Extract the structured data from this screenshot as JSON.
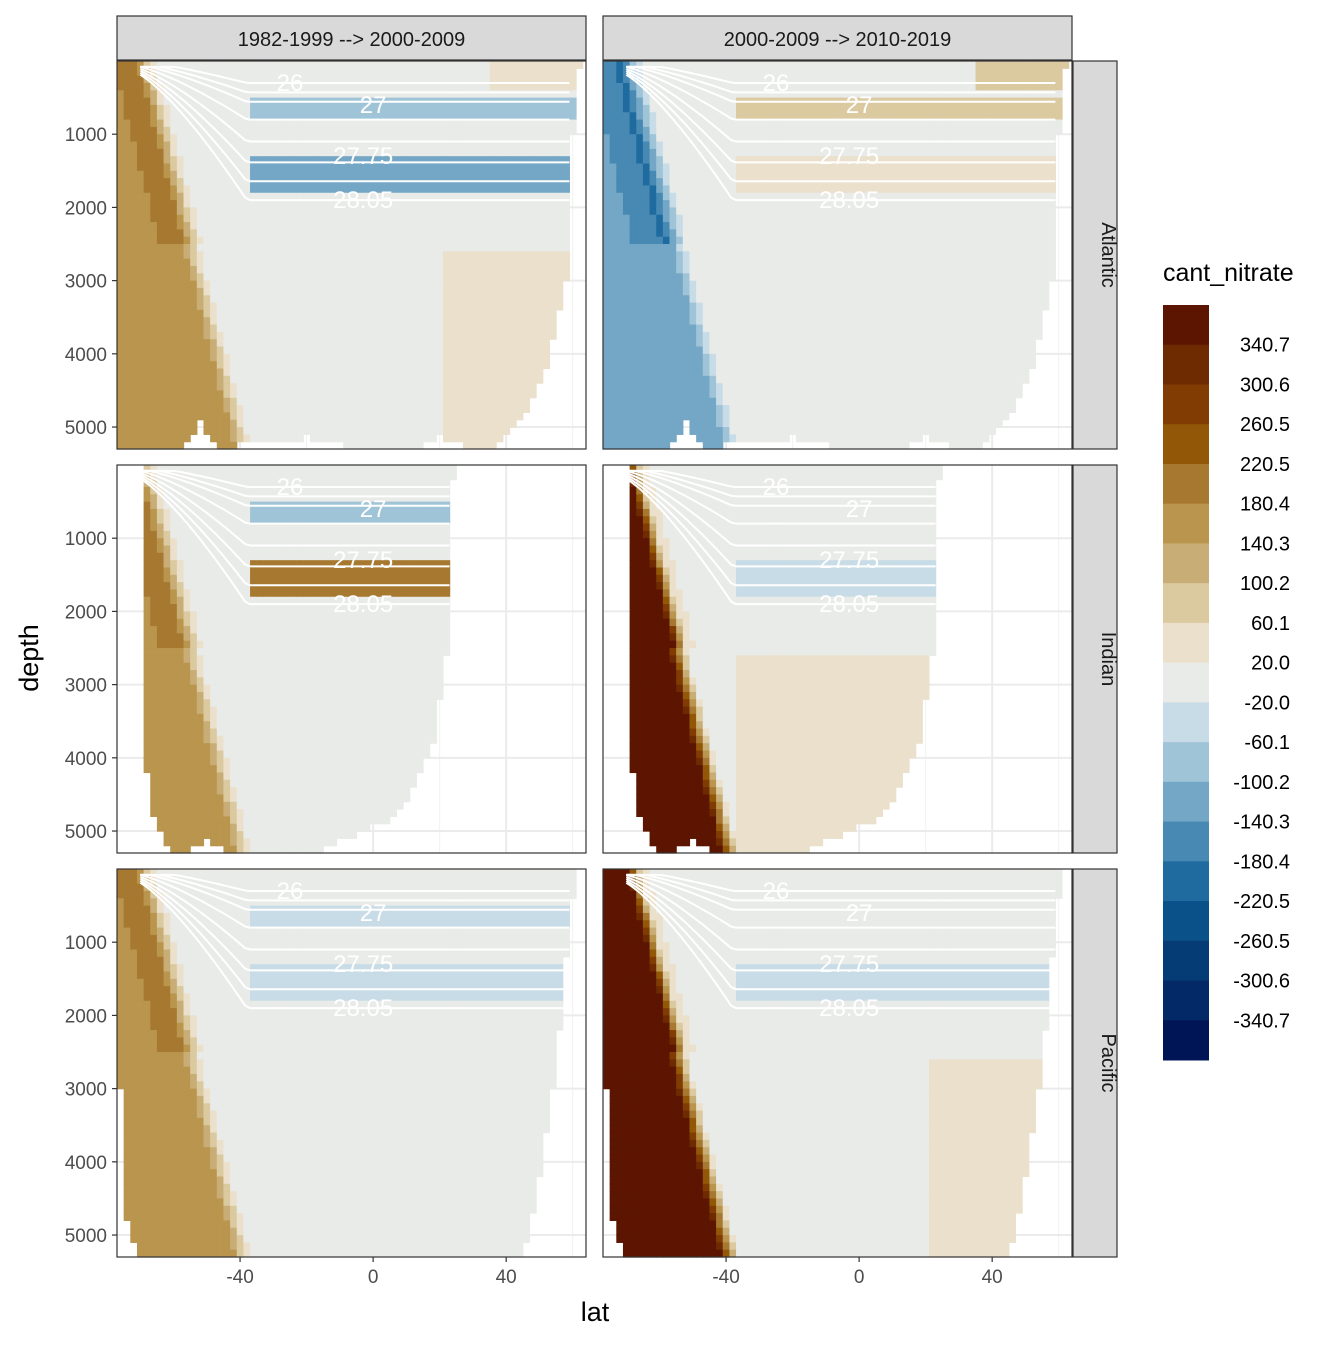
{
  "chart_data": {
    "type": "heatmap",
    "xlabel": "lat",
    "ylabel": "depth",
    "x_ticks": [
      "-40",
      "0",
      "40"
    ],
    "y_ticks": [
      "1000",
      "2000",
      "3000",
      "4000",
      "5000"
    ],
    "xlim": [
      -77,
      64
    ],
    "ylim_reversed": [
      5300,
      0
    ],
    "column_facets": [
      "1982-1999 --> 2000-2009",
      "2000-2009 --> 2010-2019"
    ],
    "row_facets": [
      "Atlantic",
      "Indian",
      "Pacific"
    ],
    "legend": {
      "title": "cant_nitrate",
      "labels": [
        "340.7",
        "300.6",
        "260.5",
        "220.5",
        "180.4",
        "140.3",
        "100.2",
        "60.1",
        "20.0",
        "-20.0",
        "-60.1",
        "-100.2",
        "-140.3",
        "-180.4",
        "-220.5",
        "-260.5",
        "-300.6",
        "-340.7"
      ],
      "colors": [
        "#5C1500",
        "#6E2A00",
        "#813C03",
        "#935708",
        "#A77930",
        "#B9954E",
        "#C8AE76",
        "#DBC9A0",
        "#EAE0CC",
        "#E9EBE8",
        "#C8DCE7",
        "#A0C4D7",
        "#74A7C6",
        "#4789B3",
        "#1F6B9F",
        "#0B5189",
        "#053C76",
        "#032A66",
        "#001556"
      ]
    },
    "isopycnal_labels": [
      "26",
      "27",
      "27.75",
      "28.05"
    ],
    "panels": [
      {
        "ocean": "Atlantic",
        "period": "1982-1999 --> 2000-2009",
        "deep_south": 160,
        "north_deep": 40,
        "upper_band": -80,
        "mid_band": -110,
        "deep_band": 0,
        "surface_north": 60
      },
      {
        "ocean": "Atlantic",
        "period": "2000-2009 --> 2010-2019",
        "deep_south": -140,
        "north_deep": 0,
        "upper_band": 80,
        "mid_band": 60,
        "deep_band": 0,
        "surface_north": 80
      },
      {
        "ocean": "Indian",
        "period": "1982-1999 --> 2000-2009",
        "deep_south": 160,
        "north_deep": 40,
        "upper_band": -100,
        "mid_band": 200,
        "deep_band": 0,
        "surface_north": 0
      },
      {
        "ocean": "Indian",
        "period": "2000-2009 --> 2010-2019",
        "deep_south": 380,
        "north_deep": 0,
        "upper_band": 0,
        "mid_band": -40,
        "deep_band": 60,
        "surface_north": 0
      },
      {
        "ocean": "Pacific",
        "period": "1982-1999 --> 2000-2009",
        "deep_south": 160,
        "north_deep": 0,
        "upper_band": -40,
        "mid_band": -60,
        "deep_band": 0,
        "surface_north": 0
      },
      {
        "ocean": "Pacific",
        "period": "2000-2009 --> 2010-2019",
        "deep_south": 380,
        "north_deep": 40,
        "upper_band": 0,
        "mid_band": -40,
        "deep_band": 0,
        "surface_north": 0
      }
    ]
  }
}
